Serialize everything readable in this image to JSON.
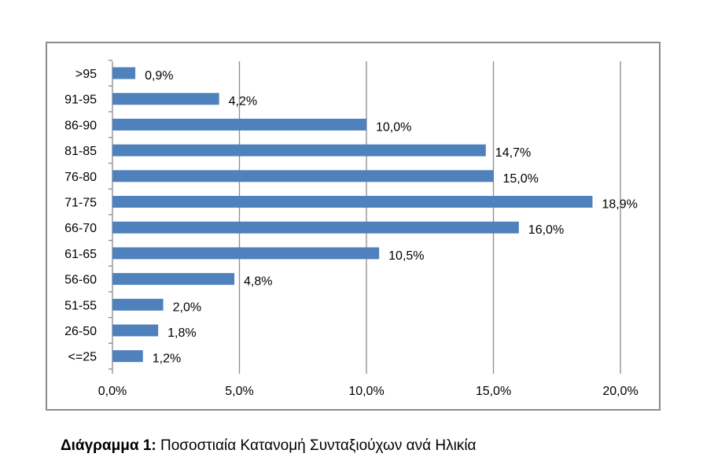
{
  "chart_data": {
    "type": "bar",
    "orientation": "horizontal",
    "categories": [
      ">95",
      "91-95",
      "86-90",
      "81-85",
      "76-80",
      "71-75",
      "66-70",
      "61-65",
      "56-60",
      "51-55",
      "26-50",
      "<=25"
    ],
    "values": [
      0.9,
      4.2,
      10.0,
      14.7,
      15.0,
      18.9,
      16.0,
      10.5,
      4.8,
      2.0,
      1.8,
      1.2
    ],
    "data_labels": [
      "0,9%",
      "4,2%",
      "10,0%",
      "14,7%",
      "15,0%",
      "18,9%",
      "16,0%",
      "10,5%",
      "4,8%",
      "2,0%",
      "1,8%",
      "1,2%"
    ],
    "xlim": [
      0,
      20
    ],
    "x_ticks": [
      0,
      5,
      10,
      15,
      20
    ],
    "x_tick_labels": [
      "0,0%",
      "5,0%",
      "10,0%",
      "15,0%",
      "20,0%"
    ],
    "grid": "vertical",
    "legend": "none",
    "bar_color": "#4f81bd",
    "grid_color": "#8c8c8c"
  },
  "caption": {
    "bold": "Διάγραμμα 1:",
    "text": " Ποσοστιαία Κατανομή Συνταξιούχων ανά Ηλικία"
  }
}
